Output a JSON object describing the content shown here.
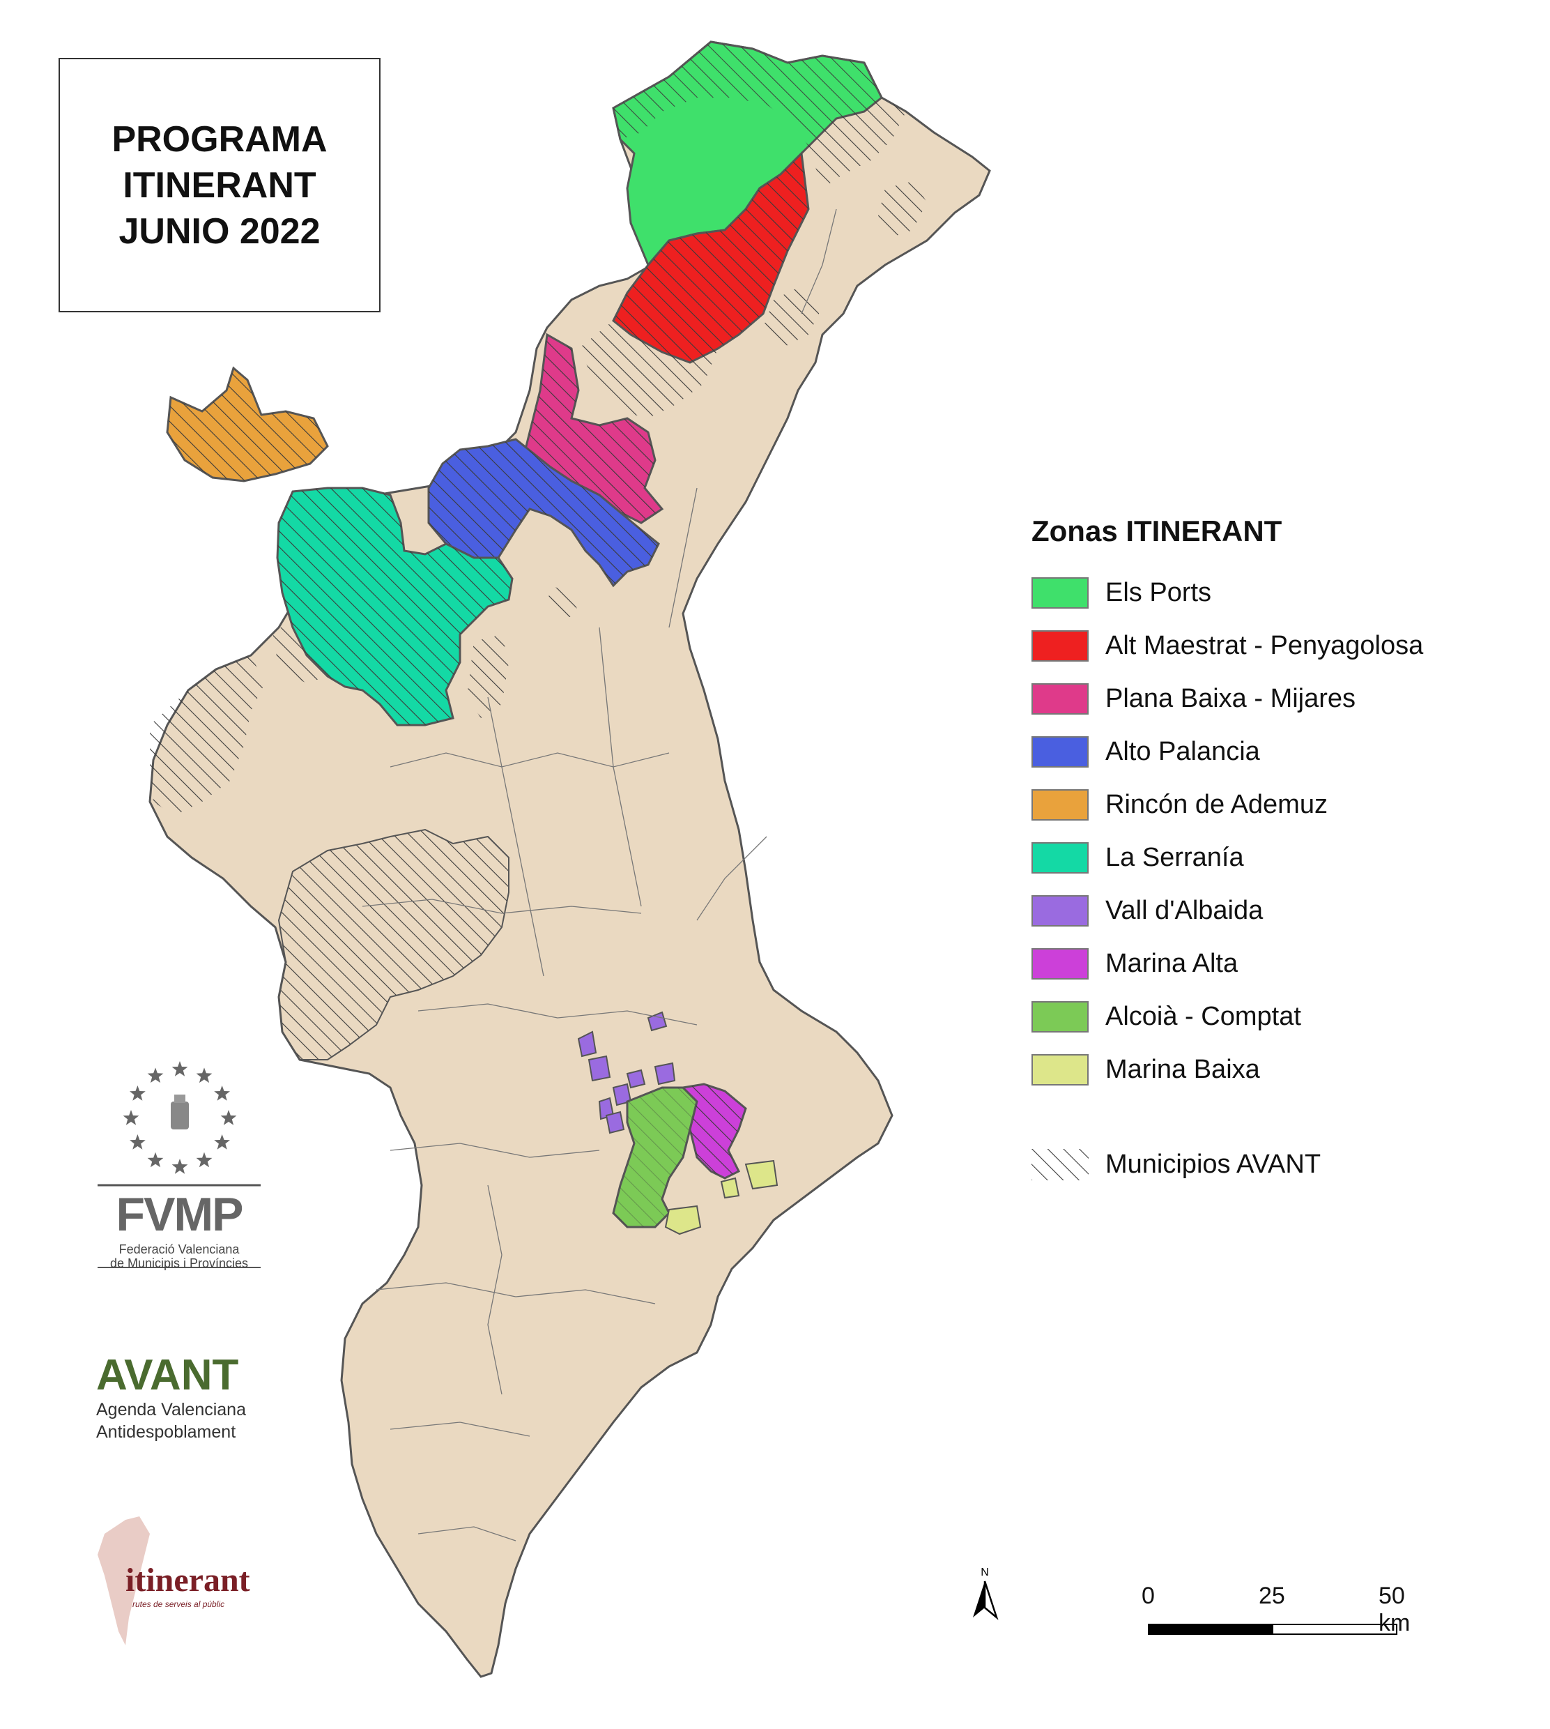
{
  "title": {
    "line1": "PROGRAMA",
    "line2": "ITINERANT",
    "line3": "JUNIO 2022"
  },
  "legend": {
    "title": "Zonas ITINERANT",
    "items": [
      {
        "label": "Els Ports",
        "color": "#3fe06b"
      },
      {
        "label": "Alt Maestrat - Penyagolosa",
        "color": "#ee2020"
      },
      {
        "label": "Plana Baixa - Mijares",
        "color": "#df3a8a"
      },
      {
        "label": "Alto Palancia",
        "color": "#4a5fe0"
      },
      {
        "label": "Rincón de Ademuz",
        "color": "#e9a23c"
      },
      {
        "label": "La Serranía",
        "color": "#14d9a5"
      },
      {
        "label": "Vall d'Albaida",
        "color": "#9a6be0"
      },
      {
        "label": "Marina Alta",
        "color": "#cc40d9"
      },
      {
        "label": "Alcoià - Comptat",
        "color": "#7cca56"
      },
      {
        "label": "Marina Baixa",
        "color": "#dde68a"
      }
    ],
    "hatch_label": "Municipios AVANT"
  },
  "scale": {
    "labels": [
      "0",
      "25",
      "50 km"
    ]
  },
  "north_label": "N",
  "logos": {
    "fvmp": {
      "acronym": "FVMP",
      "line1": "Federació Valenciana",
      "line2": "de Municipis i Províncies"
    },
    "avant": {
      "name": "AVANT",
      "line1": "Agenda Valenciana",
      "line2": "Antidespoblament"
    },
    "itinerant": {
      "name": "itinerant",
      "tagline": "rutes de serveis al públic"
    }
  },
  "colors": {
    "land": "#ead9c1",
    "border": "#555555",
    "hatch": "#3a3a3a"
  }
}
